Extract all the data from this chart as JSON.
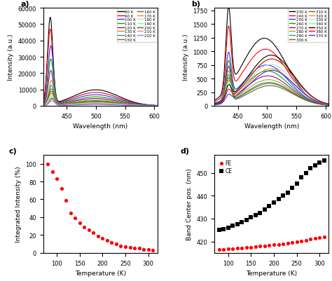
{
  "panel_a": {
    "label": "a)",
    "temps": [
      80,
      90,
      100,
      110,
      120,
      130,
      140,
      150,
      160,
      170,
      180,
      190,
      200,
      210,
      220
    ],
    "colors": [
      "black",
      "red",
      "#3333ff",
      "#00aa00",
      "#aa00aa",
      "#aaaa00",
      "#00aaaa",
      "#aa5500",
      "#556b2f",
      "#ff8800",
      "#aaddff",
      "#88ff88",
      "#555555",
      "#ff8888",
      "#8888ff"
    ],
    "peak_wl": [
      422,
      422,
      423,
      423,
      423,
      424,
      424,
      424,
      424,
      424,
      424,
      424,
      425,
      425,
      425
    ],
    "peak_heights": [
      53000,
      46000,
      36000,
      28000,
      21000,
      15000,
      12000,
      10000,
      8500,
      7200,
      6200,
      5200,
      4500,
      3800,
      3000
    ],
    "broad_peak_wl": [
      500,
      500,
      500,
      500,
      500,
      500,
      500,
      500,
      500,
      500,
      500,
      500,
      500,
      500,
      500
    ],
    "broad_heights": [
      9800,
      8200,
      6800,
      5500,
      4500,
      3600,
      3100,
      2700,
      2300,
      2000,
      1800,
      1500,
      1200,
      1000,
      750
    ],
    "wl_range": [
      410,
      605
    ],
    "ylim": [
      0,
      60000
    ],
    "ylabel": "Intensity (a.u.)",
    "xlabel": "Wavelength (nm)"
  },
  "panel_b": {
    "label": "b)",
    "temps": [
      230,
      240,
      250,
      260,
      270,
      280,
      290,
      300,
      310,
      320,
      330,
      340,
      350,
      360,
      370
    ],
    "colors": [
      "black",
      "red",
      "#3333ff",
      "#00aa00",
      "#aa00aa",
      "#aaaa00",
      "#00aaaa",
      "#aa5500",
      "#556b2f",
      "#ff8800",
      "#aaddff",
      "#88ff88",
      "black",
      "red",
      "#3333ff"
    ],
    "peak_wl": [
      434,
      434,
      434,
      434,
      434,
      434,
      434,
      434,
      434,
      434,
      434,
      434,
      434,
      434,
      434
    ],
    "peak_heights": [
      1470,
      1200,
      810,
      690,
      610,
      545,
      490,
      445,
      405,
      360,
      325,
      295,
      240,
      175,
      115
    ],
    "broad_peak_wl": [
      495,
      497,
      499,
      500,
      501,
      502,
      503,
      504,
      505,
      506,
      506,
      507,
      507,
      508,
      508
    ],
    "broad_heights": [
      1240,
      1040,
      750,
      640,
      550,
      480,
      430,
      410,
      370,
      680,
      760,
      860,
      930,
      860,
      650
    ],
    "wl_range": [
      410,
      605
    ],
    "ylim": [
      0,
      1800
    ],
    "ylabel": "Intensity (a.u.)",
    "xlabel": "Wavelength (nm)"
  },
  "panel_c": {
    "label": "c)",
    "temps": [
      80,
      90,
      100,
      110,
      120,
      130,
      140,
      150,
      160,
      170,
      180,
      190,
      200,
      210,
      220,
      230,
      240,
      250,
      260,
      270,
      280,
      290,
      300,
      310
    ],
    "integrated": [
      100,
      91,
      83,
      72,
      59,
      45,
      39,
      34,
      29,
      26,
      23,
      19,
      16,
      14,
      12,
      10,
      8,
      7,
      6,
      5,
      5,
      4,
      4,
      3
    ],
    "color": "#ff0000",
    "xlabel": "Temperature (K)",
    "ylabel": "Integrated Intensity (%)",
    "xlim": [
      70,
      320
    ],
    "ylim": [
      0,
      110
    ]
  },
  "panel_d": {
    "label": "d)",
    "temps_FE": [
      80,
      90,
      100,
      110,
      120,
      130,
      140,
      150,
      160,
      170,
      180,
      190,
      200,
      210,
      220,
      230,
      240,
      250,
      260,
      270,
      280,
      290,
      300,
      310
    ],
    "FE_pos": [
      416.5,
      416.5,
      416.8,
      416.8,
      417.0,
      417.2,
      417.3,
      417.5,
      417.7,
      417.9,
      418.0,
      418.2,
      418.5,
      418.7,
      419.0,
      419.3,
      419.6,
      420.0,
      420.3,
      420.6,
      421.0,
      421.3,
      421.7,
      422.0
    ],
    "temps_CE": [
      80,
      90,
      100,
      110,
      120,
      130,
      140,
      150,
      160,
      170,
      180,
      190,
      200,
      210,
      220,
      230,
      240,
      250,
      260,
      270,
      280,
      290,
      300,
      310
    ],
    "CE_pos": [
      425.0,
      425.5,
      426.0,
      426.8,
      427.5,
      428.5,
      429.5,
      430.5,
      431.5,
      432.5,
      434.0,
      435.5,
      437.0,
      438.5,
      440.0,
      441.5,
      443.5,
      445.5,
      448.0,
      450.0,
      452.0,
      453.5,
      454.5,
      455.5
    ],
    "color_FE": "#ff0000",
    "color_CE": "#000000",
    "marker_FE": "o",
    "marker_CE": "s",
    "xlabel": "Temperature (K)",
    "ylabel": "Band Center pos. (nm)",
    "xlim": [
      70,
      320
    ],
    "ylim": [
      415,
      458
    ],
    "legend_FE": "FE",
    "legend_CE": "CE"
  }
}
